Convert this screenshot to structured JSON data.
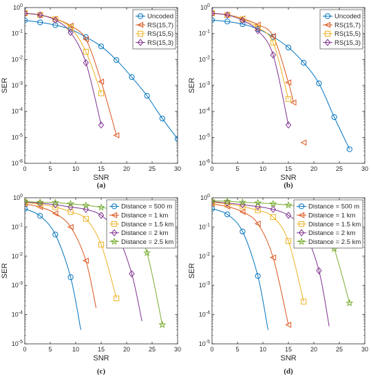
{
  "chart_data": [
    {
      "type": "line",
      "caption": "(a)",
      "xlabel": "SNR",
      "ylabel": "SER",
      "xlim": [
        0,
        30
      ],
      "ylim_log10": [
        -6,
        0
      ],
      "xticks": [
        "0",
        "5",
        "10",
        "15",
        "20",
        "25",
        "30"
      ],
      "yticks": [
        "10^0",
        "10^-1",
        "10^-2",
        "10^-3",
        "10^-4",
        "10^-5",
        "10^-6"
      ],
      "grid": false,
      "legend_position": "top-right",
      "y_scale": "log",
      "series": [
        {
          "name": "Uncoded",
          "color": "#0072BD",
          "marker": "circle",
          "x": [
            0,
            3,
            6,
            9,
            12,
            15,
            18,
            21,
            24,
            27,
            30
          ],
          "y": [
            0.32,
            0.27,
            0.21,
            0.145,
            0.073,
            0.032,
            0.0095,
            0.0021,
            0.0004,
            5.3e-05,
            8.8e-06
          ]
        },
        {
          "name": "RS(15,7)",
          "color": "#D95319",
          "marker": "triangle-left",
          "x": [
            0,
            3,
            6,
            9,
            12,
            15,
            18
          ],
          "y": [
            0.6,
            0.52,
            0.37,
            0.2,
            0.06,
            0.0014,
            1.2e-05
          ]
        },
        {
          "name": "RS(15,5)",
          "color": "#EDB120",
          "marker": "square",
          "x": [
            0,
            3,
            6,
            9,
            12,
            15
          ],
          "y": [
            0.6,
            0.52,
            0.36,
            0.17,
            0.02,
            0.0005
          ]
        },
        {
          "name": "RS(15,3)",
          "color": "#7E2F8E",
          "marker": "diamond",
          "x": [
            0,
            3,
            6,
            9,
            12,
            15
          ],
          "y": [
            0.6,
            0.52,
            0.33,
            0.11,
            0.0075,
            3e-05
          ]
        }
      ]
    },
    {
      "type": "line",
      "caption": "(b)",
      "xlabel": "SNR",
      "ylabel": "SER",
      "xlim": [
        0,
        30
      ],
      "ylim_log10": [
        -6,
        0
      ],
      "xticks": [
        "0",
        "5",
        "10",
        "15",
        "20",
        "25",
        "30"
      ],
      "yticks": [
        "10^0",
        "10^-1",
        "10^-2",
        "10^-3",
        "10^-4",
        "10^-5",
        "10^-6"
      ],
      "grid": false,
      "legend_position": "top-right",
      "y_scale": "log",
      "series": [
        {
          "name": "Uncoded",
          "color": "#0072BD",
          "marker": "circle",
          "x": [
            0,
            3,
            6,
            9,
            12,
            15,
            18,
            21,
            24,
            27
          ],
          "y": [
            0.33,
            0.29,
            0.23,
            0.15,
            0.075,
            0.029,
            0.0075,
            0.0012,
            6e-05,
            3.5e-06
          ]
        },
        {
          "name": "RS(15,7)",
          "color": "#D95319",
          "marker": "triangle-left",
          "x": [
            0,
            3,
            6,
            9,
            12,
            15,
            16,
            18
          ],
          "y": [
            0.6,
            0.53,
            0.38,
            0.22,
            0.08,
            0.0013,
            0.00022,
            6.3e-06
          ],
          "line_x": [
            0,
            3,
            6,
            9,
            12,
            15,
            16
          ]
        },
        {
          "name": "RS(15,5)",
          "color": "#EDB120",
          "marker": "square",
          "x": [
            0,
            3,
            6,
            9,
            12,
            15
          ],
          "y": [
            0.6,
            0.52,
            0.36,
            0.17,
            0.045,
            0.0003
          ]
        },
        {
          "name": "RS(15,3)",
          "color": "#7E2F8E",
          "marker": "diamond",
          "x": [
            0,
            3,
            6,
            9,
            12,
            15
          ],
          "y": [
            0.6,
            0.52,
            0.32,
            0.13,
            0.015,
            3e-05
          ]
        }
      ]
    },
    {
      "type": "line",
      "caption": "(c)",
      "xlabel": "SNR",
      "ylabel": "SER",
      "xlim": [
        0,
        30
      ],
      "ylim_log10": [
        -5,
        0
      ],
      "xticks": [
        "0",
        "5",
        "10",
        "15",
        "20",
        "25",
        "30"
      ],
      "yticks": [
        "10^0",
        "10^-1",
        "10^-2",
        "10^-3",
        "10^-4",
        "10^-5"
      ],
      "grid": false,
      "legend_position": "top-right",
      "y_scale": "log",
      "series": [
        {
          "name": "Distance = 500 m",
          "color": "#0072BD",
          "marker": "circle",
          "x": [
            0,
            3,
            6,
            9,
            11
          ],
          "y": [
            0.42,
            0.24,
            0.055,
            0.0019,
            3e-05
          ],
          "marker_x": [
            0,
            3,
            6,
            9
          ]
        },
        {
          "name": "Distance = 1 km",
          "color": "#D95319",
          "marker": "triangle-left",
          "x": [
            0,
            3,
            6,
            9,
            12,
            14
          ],
          "y": [
            0.62,
            0.48,
            0.29,
            0.1,
            0.007,
            0.00017
          ],
          "marker_x": [
            0,
            3,
            6,
            9,
            12
          ]
        },
        {
          "name": "Distance = 1.5 km",
          "color": "#EDB120",
          "marker": "square",
          "x": [
            0,
            3,
            6,
            9,
            12,
            15,
            18
          ],
          "y": [
            0.7,
            0.6,
            0.48,
            0.33,
            0.19,
            0.025,
            0.00036
          ]
        },
        {
          "name": "Distance = 2 km",
          "color": "#7E2F8E",
          "marker": "diamond",
          "x": [
            0,
            3,
            6,
            9,
            12,
            15,
            18,
            21,
            23
          ],
          "y": [
            0.72,
            0.65,
            0.58,
            0.48,
            0.4,
            0.25,
            0.065,
            0.0025,
            6e-05
          ],
          "marker_x": [
            0,
            3,
            6,
            9,
            12,
            15,
            18,
            21
          ]
        },
        {
          "name": "Distance = 2.5 km",
          "color": "#77AC30",
          "marker": "star",
          "x": [
            0,
            3,
            6,
            9,
            12,
            15,
            18,
            21,
            24,
            27
          ],
          "y": [
            0.75,
            0.7,
            0.68,
            0.62,
            0.55,
            0.47,
            0.36,
            0.18,
            0.013,
            4.5e-05
          ]
        }
      ]
    },
    {
      "type": "line",
      "caption": "(d)",
      "xlabel": "SNR",
      "ylabel": "SER",
      "xlim": [
        0,
        30
      ],
      "ylim_log10": [
        -5,
        0
      ],
      "xticks": [
        "0",
        "5",
        "10",
        "15",
        "20",
        "25",
        "30"
      ],
      "yticks": [
        "10^0",
        "10^-1",
        "10^-2",
        "10^-3",
        "10^-4",
        "10^-5"
      ],
      "grid": false,
      "legend_position": "top-right",
      "y_scale": "log",
      "series": [
        {
          "name": "Distance = 500 m",
          "color": "#0072BD",
          "marker": "circle",
          "x": [
            0,
            3,
            6,
            9,
            11
          ],
          "y": [
            0.42,
            0.27,
            0.07,
            0.0021,
            3e-05
          ],
          "marker_x": [
            0,
            3,
            6,
            9
          ]
        },
        {
          "name": "Distance = 1 km",
          "color": "#D95319",
          "marker": "triangle-left",
          "x": [
            0,
            3,
            6,
            9,
            12,
            15
          ],
          "y": [
            0.62,
            0.5,
            0.33,
            0.13,
            0.009,
            4.5e-05
          ]
        },
        {
          "name": "Distance = 1.5 km",
          "color": "#EDB120",
          "marker": "square",
          "x": [
            0,
            3,
            6,
            9,
            12,
            15,
            18
          ],
          "y": [
            0.7,
            0.62,
            0.5,
            0.37,
            0.22,
            0.033,
            0.00028
          ]
        },
        {
          "name": "Distance = 2 km",
          "color": "#7E2F8E",
          "marker": "diamond",
          "x": [
            0,
            3,
            6,
            9,
            12,
            15,
            18,
            21,
            23
          ],
          "y": [
            0.74,
            0.66,
            0.58,
            0.5,
            0.4,
            0.25,
            0.08,
            0.0032,
            4e-05
          ],
          "marker_x": [
            0,
            3,
            6,
            9,
            12,
            15,
            18,
            21
          ]
        },
        {
          "name": "Distance = 2.5 km",
          "color": "#77AC30",
          "marker": "star",
          "x": [
            0,
            3,
            6,
            9,
            12,
            15,
            18,
            21,
            24,
            27
          ],
          "y": [
            0.78,
            0.76,
            0.7,
            0.67,
            0.62,
            0.56,
            0.48,
            0.34,
            0.018,
            0.00025
          ]
        }
      ]
    }
  ]
}
